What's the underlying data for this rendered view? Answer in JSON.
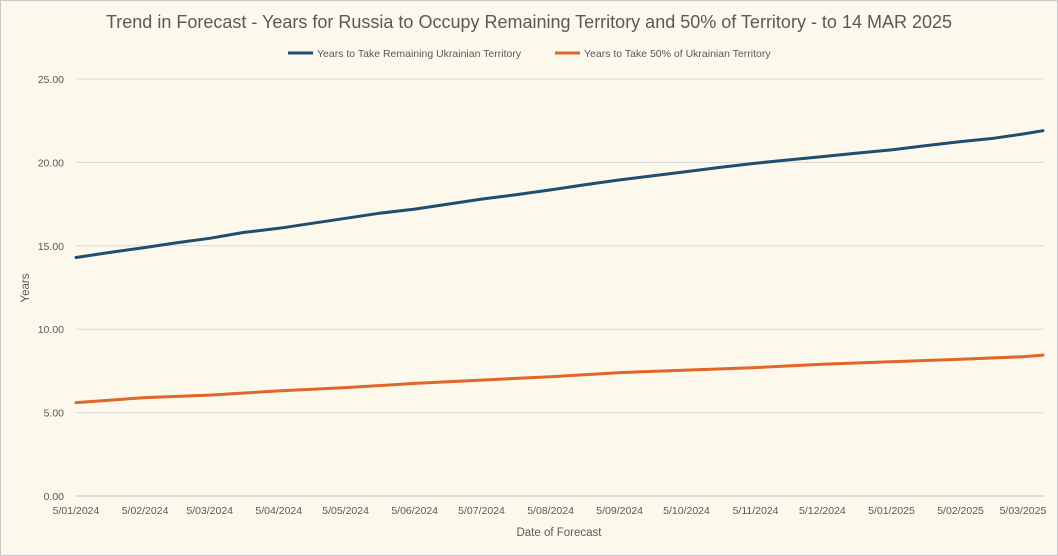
{
  "chart_data": {
    "type": "line",
    "title": "Trend in Forecast - Years for Russia to Occupy Remaining Territory and 50% of Territory - to 14 MAR 2025",
    "xlabel": "Date of Forecast",
    "ylabel": "Years",
    "ylim": [
      0,
      25
    ],
    "y_ticks": [
      "0.00",
      "5.00",
      "10.00",
      "15.00",
      "20.00",
      "25.00"
    ],
    "x_tick_labels": [
      "5/01/2024",
      "5/02/2024",
      "5/03/2024",
      "5/04/2024",
      "5/05/2024",
      "5/06/2024",
      "5/07/2024",
      "5/08/2024",
      "5/09/2024",
      "5/10/2024",
      "5/11/2024",
      "5/12/2024",
      "5/01/2025",
      "5/02/2025",
      "5/03/2025"
    ],
    "x_tick_dates": [
      "2024-01-05",
      "2024-02-05",
      "2024-03-05",
      "2024-04-05",
      "2024-05-05",
      "2024-06-05",
      "2024-07-05",
      "2024-08-05",
      "2024-09-05",
      "2024-10-05",
      "2024-11-05",
      "2024-12-05",
      "2025-01-05",
      "2025-02-05",
      "2025-03-05"
    ],
    "x_range": [
      "2024-01-05",
      "2025-03-14"
    ],
    "grid": true,
    "legend_position": "top",
    "series": [
      {
        "name": "Years to Take Remaining Ukrainian Territory",
        "color": "#1f4e6e",
        "points": [
          [
            "2024-01-05",
            14.3
          ],
          [
            "2024-01-20",
            14.6
          ],
          [
            "2024-02-05",
            14.9
          ],
          [
            "2024-02-20",
            15.2
          ],
          [
            "2024-03-05",
            15.45
          ],
          [
            "2024-03-20",
            15.8
          ],
          [
            "2024-04-05",
            16.05
          ],
          [
            "2024-04-20",
            16.35
          ],
          [
            "2024-05-05",
            16.65
          ],
          [
            "2024-05-20",
            16.95
          ],
          [
            "2024-06-05",
            17.2
          ],
          [
            "2024-06-20",
            17.5
          ],
          [
            "2024-07-05",
            17.8
          ],
          [
            "2024-07-20",
            18.05
          ],
          [
            "2024-08-05",
            18.35
          ],
          [
            "2024-08-20",
            18.65
          ],
          [
            "2024-09-05",
            18.95
          ],
          [
            "2024-09-20",
            19.2
          ],
          [
            "2024-10-05",
            19.45
          ],
          [
            "2024-10-20",
            19.7
          ],
          [
            "2024-11-05",
            19.95
          ],
          [
            "2024-11-20",
            20.15
          ],
          [
            "2024-12-05",
            20.35
          ],
          [
            "2024-12-20",
            20.55
          ],
          [
            "2025-01-05",
            20.75
          ],
          [
            "2025-01-20",
            21.0
          ],
          [
            "2025-02-05",
            21.25
          ],
          [
            "2025-02-20",
            21.45
          ],
          [
            "2025-03-05",
            21.7
          ],
          [
            "2025-03-14",
            21.9
          ]
        ]
      },
      {
        "name": "Years to Take  50% of Ukrainian Territory",
        "color": "#e0662a",
        "points": [
          [
            "2024-01-05",
            5.6
          ],
          [
            "2024-02-05",
            5.9
          ],
          [
            "2024-03-05",
            6.05
          ],
          [
            "2024-04-05",
            6.3
          ],
          [
            "2024-05-05",
            6.5
          ],
          [
            "2024-06-05",
            6.75
          ],
          [
            "2024-07-05",
            6.95
          ],
          [
            "2024-08-05",
            7.15
          ],
          [
            "2024-09-05",
            7.4
          ],
          [
            "2024-10-05",
            7.55
          ],
          [
            "2024-11-05",
            7.7
          ],
          [
            "2024-12-05",
            7.9
          ],
          [
            "2025-01-05",
            8.05
          ],
          [
            "2025-02-05",
            8.2
          ],
          [
            "2025-03-05",
            8.35
          ],
          [
            "2025-03-14",
            8.45
          ]
        ]
      }
    ]
  }
}
